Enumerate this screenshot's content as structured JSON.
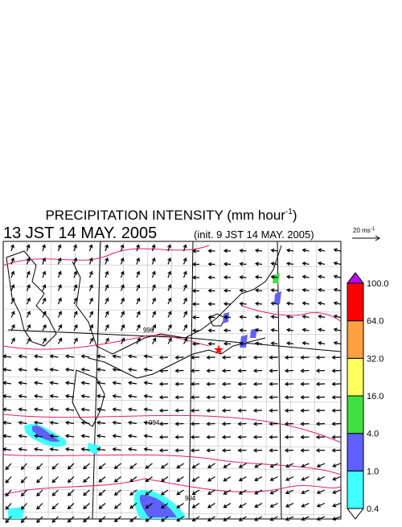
{
  "header": {
    "title": "PRECIPITATION INTENSITY (mm hour",
    "title_exponent": "-1",
    "title_end": ")",
    "valid_time": "13 JST 14 MAY. 2005",
    "init_time": "(init. 9 JST 14 MAY. 2005)"
  },
  "vector_legend": {
    "label": "20 ms",
    "exponent": "-1"
  },
  "colorbar": {
    "labels": [
      "0.4",
      "1.0",
      "4.0",
      "16.0",
      "32.0",
      "64.0",
      "100.0"
    ],
    "colors": [
      "#ffffff",
      "#40ffff",
      "#6060ff",
      "#40e040",
      "#ffff60",
      "#ffa040",
      "#ff0000",
      "#c000ff"
    ]
  },
  "contour_labels": [
    "996",
    "994",
    "994"
  ]
}
